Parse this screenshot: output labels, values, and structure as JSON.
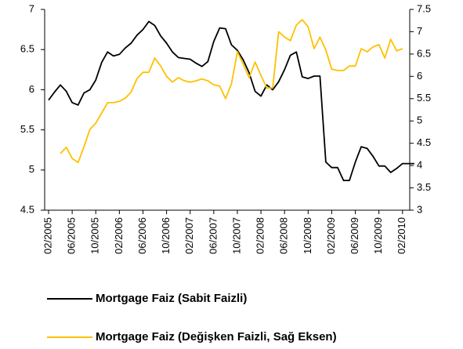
{
  "chart_data": {
    "type": "line",
    "categories": [
      "02/2005",
      null,
      null,
      null,
      "06/2005",
      null,
      null,
      null,
      "10/2005",
      null,
      null,
      null,
      "02/2006",
      null,
      null,
      null,
      "06/2006",
      null,
      null,
      null,
      "10/2006",
      null,
      null,
      null,
      "02/2007",
      null,
      null,
      null,
      "06/2007",
      null,
      null,
      null,
      "10/2007",
      null,
      null,
      null,
      "02/2008",
      null,
      null,
      null,
      "06/2008",
      null,
      null,
      null,
      "10/2008",
      null,
      null,
      null,
      "02/2009",
      null,
      null,
      null,
      "06/2009",
      null,
      null,
      null,
      "10/2009",
      null,
      null,
      null,
      "02/2010",
      null,
      null
    ],
    "series": [
      {
        "name": "Mortgage Faiz (Sabit Faizli)",
        "color": "#000000",
        "values": [
          5.87,
          5.97,
          6.06,
          5.98,
          5.84,
          5.81,
          5.96,
          6.0,
          6.12,
          6.34,
          6.47,
          6.42,
          6.44,
          6.52,
          6.58,
          6.68,
          6.75,
          6.85,
          6.8,
          6.67,
          6.58,
          6.47,
          6.4,
          6.39,
          6.38,
          6.33,
          6.29,
          6.35,
          6.6,
          6.77,
          6.76,
          6.56,
          6.49,
          6.37,
          6.21,
          5.98,
          5.92,
          6.06,
          6.0,
          6.1,
          6.25,
          6.43,
          6.47,
          6.16,
          6.14,
          6.17,
          6.17,
          5.1,
          5.03,
          5.03,
          4.87,
          4.87,
          5.1,
          5.29,
          5.27,
          5.17,
          5.05,
          5.05,
          4.97,
          5.02,
          5.08,
          5.08,
          5.08
        ]
      },
      {
        "name": "Mortgage Faiz (Değişken Faizli, Sağ Eksen)",
        "color": "#ffc000",
        "axis": "y2",
        "values": [
          null,
          null,
          4.27,
          4.41,
          4.16,
          4.07,
          4.42,
          4.81,
          4.95,
          5.18,
          5.41,
          5.41,
          5.44,
          5.51,
          5.65,
          5.95,
          6.09,
          6.09,
          6.41,
          6.23,
          6.0,
          5.87,
          5.97,
          5.9,
          5.87,
          5.9,
          5.94,
          5.9,
          5.81,
          5.78,
          5.5,
          5.83,
          6.55,
          6.27,
          5.97,
          6.32,
          6.02,
          5.74,
          5.74,
          7.0,
          6.88,
          6.8,
          7.15,
          7.27,
          7.11,
          6.62,
          6.88,
          6.59,
          6.16,
          6.13,
          6.13,
          6.23,
          6.23,
          6.62,
          6.55,
          6.66,
          6.71,
          6.41,
          6.83,
          6.57,
          6.62,
          null,
          null
        ]
      }
    ],
    "ylim": [
      4.5,
      7
    ],
    "yticks": [
      4.5,
      5,
      5.5,
      6,
      6.5,
      7
    ],
    "y2lim": [
      3,
      7.5
    ],
    "y2ticks": [
      3,
      3.5,
      4,
      4.5,
      5,
      5.5,
      6,
      6.5,
      7,
      7.5
    ],
    "grid": false,
    "legend": "bottom"
  }
}
